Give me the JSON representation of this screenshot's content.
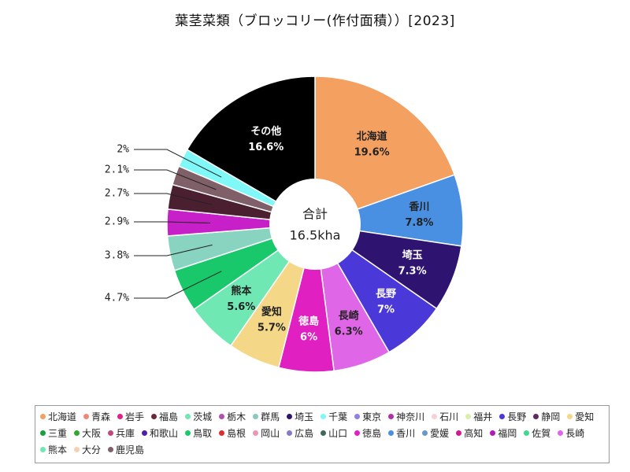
{
  "title": "葉茎菜類（ブロッコリー(作付面積））[2023]",
  "chart_data": {
    "type": "pie",
    "title": "葉茎菜類（ブロッコリー(作付面積））[2023]",
    "center_label": {
      "line1": "合計",
      "line2": "16.5kha"
    },
    "slices": [
      {
        "name": "北海道",
        "value": 19.6,
        "label": "19.6%",
        "color": "#f4a060",
        "text_color": "#222222",
        "label_type": "inside"
      },
      {
        "name": "香川",
        "value": 7.8,
        "label": "7.8%",
        "color": "#4a90e2",
        "text_color": "#222222",
        "label_type": "inside"
      },
      {
        "name": "埼玉",
        "value": 7.3,
        "label": "7.3%",
        "color": "#2e1470",
        "text_color": "#ffffff",
        "label_type": "inside"
      },
      {
        "name": "長野",
        "value": 7,
        "label": "7%",
        "color": "#4b38d8",
        "text_color": "#ffffff",
        "label_type": "inside"
      },
      {
        "name": "長崎",
        "value": 6.3,
        "label": "6.3%",
        "color": "#e066e8",
        "text_color": "#222222",
        "label_type": "inside"
      },
      {
        "name": "徳島",
        "value": 6,
        "label": "6%",
        "color": "#e020c0",
        "text_color": "#ffffff",
        "label_type": "inside"
      },
      {
        "name": "愛知",
        "value": 5.7,
        "label": "5.7%",
        "color": "#f4d888",
        "text_color": "#222222",
        "label_type": "inside"
      },
      {
        "name": "熊本",
        "value": 5.6,
        "label": "5.6%",
        "color": "#70e8b4",
        "text_color": "#222222",
        "label_type": "inside"
      },
      {
        "name": "",
        "value": 4.7,
        "label": "4.7%",
        "color": "#18c86a",
        "label_type": "leader"
      },
      {
        "name": "",
        "value": 3.8,
        "label": "3.8%",
        "color": "#88d4c0",
        "label_type": "leader"
      },
      {
        "name": "",
        "value": 2.9,
        "label": "2.9%",
        "color": "#c820c8",
        "label_type": "leader"
      },
      {
        "name": "",
        "value": 2.7,
        "label": "2.7%",
        "color": "#4a2030",
        "label_type": "leader"
      },
      {
        "name": "",
        "value": 2.1,
        "label": "2.1%",
        "color": "#806068",
        "label_type": "leader"
      },
      {
        "name": "",
        "value": 2,
        "label": "2%",
        "color": "#80f8f8",
        "label_type": "leader"
      },
      {
        "name": "その他",
        "value": 16.6,
        "label": "16.6%",
        "color": "#000000",
        "text_color": "#ffffff",
        "label_type": "inside"
      }
    ],
    "legend_position": "bottom",
    "legend": [
      {
        "name": "北海道",
        "color": "#f4a060"
      },
      {
        "name": "青森",
        "color": "#f08878"
      },
      {
        "name": "岩手",
        "color": "#e0208c"
      },
      {
        "name": "福島",
        "color": "#6a2838"
      },
      {
        "name": "茨城",
        "color": "#70e8b0"
      },
      {
        "name": "栃木",
        "color": "#b050b0"
      },
      {
        "name": "群馬",
        "color": "#88c8c0"
      },
      {
        "name": "埼玉",
        "color": "#2e1470"
      },
      {
        "name": "千葉",
        "color": "#80f8f8"
      },
      {
        "name": "東京",
        "color": "#9080e0"
      },
      {
        "name": "神奈川",
        "color": "#b030b0"
      },
      {
        "name": "石川",
        "color": "#f8d0d8"
      },
      {
        "name": "福井",
        "color": "#d8f0a8"
      },
      {
        "name": "長野",
        "color": "#4b38d8"
      },
      {
        "name": "静岡",
        "color": "#602860"
      },
      {
        "name": "愛知",
        "color": "#f4d888"
      },
      {
        "name": "三重",
        "color": "#18a040"
      },
      {
        "name": "大阪",
        "color": "#30a830"
      },
      {
        "name": "兵庫",
        "color": "#c04880"
      },
      {
        "name": "和歌山",
        "color": "#5020a0"
      },
      {
        "name": "鳥取",
        "color": "#18c86a"
      },
      {
        "name": "島根",
        "color": "#d83030"
      },
      {
        "name": "岡山",
        "color": "#e898b0"
      },
      {
        "name": "広島",
        "color": "#8878c8"
      },
      {
        "name": "山口",
        "color": "#406858"
      },
      {
        "name": "徳島",
        "color": "#e020c0"
      },
      {
        "name": "香川",
        "color": "#4a90e2"
      },
      {
        "name": "愛媛",
        "color": "#6898c8"
      },
      {
        "name": "高知",
        "color": "#d01890"
      },
      {
        "name": "福岡",
        "color": "#b018b8"
      },
      {
        "name": "佐賀",
        "color": "#40d890"
      },
      {
        "name": "長崎",
        "color": "#e066e8"
      },
      {
        "name": "熊本",
        "color": "#70e8b4"
      },
      {
        "name": "大分",
        "color": "#f8d0b0"
      },
      {
        "name": "鹿児島",
        "color": "#806068"
      }
    ]
  }
}
